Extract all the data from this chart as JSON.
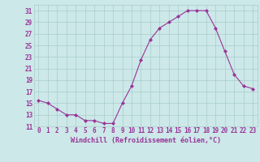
{
  "x": [
    0,
    1,
    2,
    3,
    4,
    5,
    6,
    7,
    8,
    9,
    10,
    11,
    12,
    13,
    14,
    15,
    16,
    17,
    18,
    19,
    20,
    21,
    22,
    23
  ],
  "y": [
    15.5,
    15.0,
    14.0,
    13.0,
    13.0,
    12.0,
    12.0,
    11.5,
    11.5,
    15.0,
    18.0,
    22.5,
    26.0,
    28.0,
    29.0,
    30.0,
    31.0,
    31.0,
    31.0,
    28.0,
    24.0,
    20.0,
    18.0,
    17.5
  ],
  "line_color": "#993399",
  "marker": "D",
  "markersize": 2,
  "bg_color": "#cce8e8",
  "grid_color": "#aacccc",
  "xlabel": "Windchill (Refroidissement éolien,°C)",
  "xlim": [
    -0.5,
    23.5
  ],
  "ylim": [
    11,
    32
  ],
  "yticks": [
    11,
    13,
    15,
    17,
    19,
    21,
    23,
    25,
    27,
    29,
    31
  ],
  "xticks": [
    0,
    1,
    2,
    3,
    4,
    5,
    6,
    7,
    8,
    9,
    10,
    11,
    12,
    13,
    14,
    15,
    16,
    17,
    18,
    19,
    20,
    21,
    22,
    23
  ],
  "label_fontsize": 6,
  "tick_fontsize": 5.5
}
